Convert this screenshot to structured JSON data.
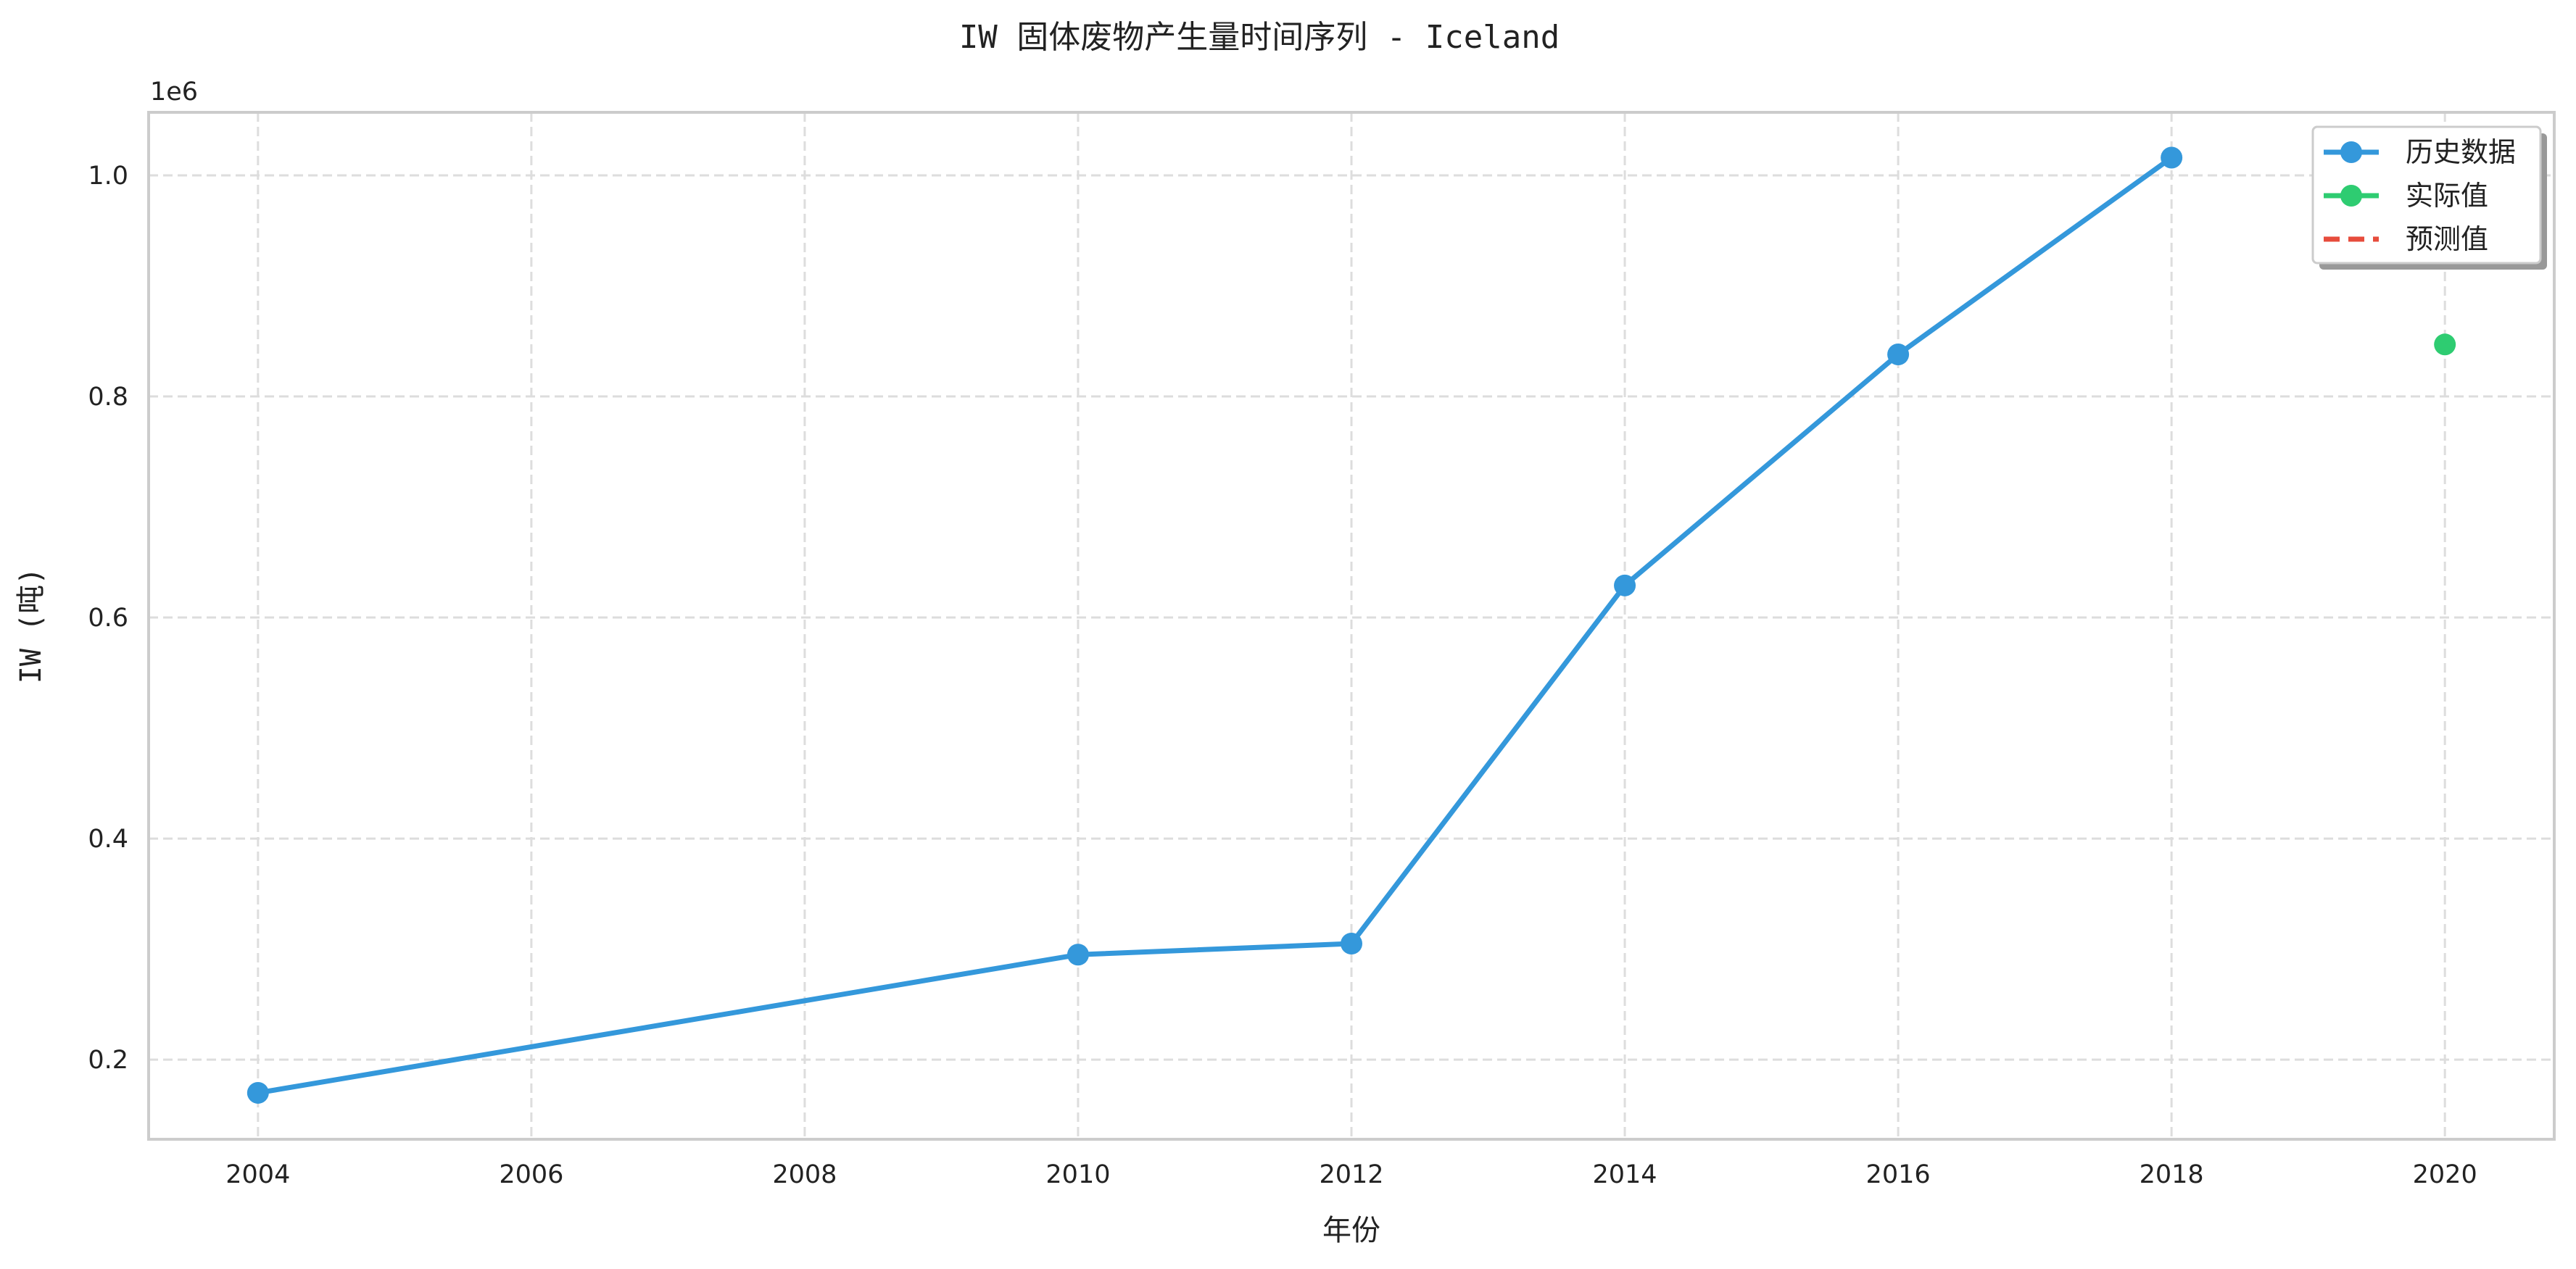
{
  "chart_data": {
    "type": "line",
    "title": "IW 固体废物产生量时间序列 - Iceland",
    "xlabel": "年份",
    "ylabel": "IW (吨)",
    "y_offset_label": "1e6",
    "xlim": [
      2003.2,
      2020.8
    ],
    "ylim": [
      0.128,
      1.057
    ],
    "x_ticks": [
      2004,
      2006,
      2008,
      2010,
      2012,
      2014,
      2016,
      2018,
      2020
    ],
    "y_ticks": [
      0.2,
      0.4,
      0.6,
      0.8,
      1.0
    ],
    "y_tick_labels": [
      "0.2",
      "0.4",
      "0.6",
      "0.8",
      "1.0"
    ],
    "grid": true,
    "legend_position": "top-right",
    "series": [
      {
        "name": "历史数据",
        "color": "#3498db",
        "style": "line-marker",
        "x": [
          2004,
          2010,
          2012,
          2014,
          2016,
          2018
        ],
        "y": [
          0.17,
          0.295,
          0.305,
          0.629,
          0.838,
          1.016
        ]
      },
      {
        "name": "实际值",
        "color": "#2ecc71",
        "style": "marker",
        "x": [
          2020
        ],
        "y": [
          0.847
        ]
      },
      {
        "name": "预测值",
        "color": "#e74c3c",
        "style": "dashed",
        "x": [],
        "y": []
      }
    ]
  }
}
